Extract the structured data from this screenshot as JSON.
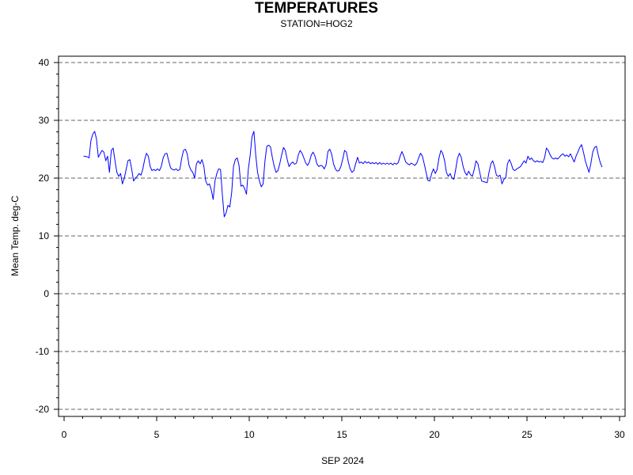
{
  "chart_data": {
    "type": "line",
    "title": "TEMPERATURES",
    "subtitle": "STATION=HOG2",
    "xlabel": "SEP 2024",
    "ylabel": "Mean Temp. deg-C",
    "xlim": [
      0,
      30.3
    ],
    "ylim": [
      -21.5,
      41
    ],
    "x_ticks": [
      0,
      5,
      10,
      15,
      20,
      25,
      30
    ],
    "y_ticks": [
      -20,
      -10,
      0,
      10,
      20,
      30,
      40
    ],
    "grid": "horizontal dashed",
    "series": [
      {
        "color": "#0000ff",
        "points": [
          [
            1.05,
            23.8
          ],
          [
            1.25,
            23.7
          ],
          [
            1.35,
            23.5
          ],
          [
            1.45,
            26.5
          ],
          [
            1.55,
            27.6
          ],
          [
            1.65,
            28.1
          ],
          [
            1.75,
            26.8
          ],
          [
            1.85,
            23.6
          ],
          [
            1.95,
            24.2
          ],
          [
            2.05,
            24.8
          ],
          [
            2.15,
            24.5
          ],
          [
            2.25,
            23.0
          ],
          [
            2.35,
            23.8
          ],
          [
            2.45,
            21.0
          ],
          [
            2.55,
            24.8
          ],
          [
            2.65,
            25.2
          ],
          [
            2.75,
            23.0
          ],
          [
            2.85,
            21.0
          ],
          [
            2.95,
            20.3
          ],
          [
            3.05,
            20.8
          ],
          [
            3.15,
            19.0
          ],
          [
            3.25,
            20.0
          ],
          [
            3.35,
            21.5
          ],
          [
            3.45,
            23.0
          ],
          [
            3.55,
            23.2
          ],
          [
            3.65,
            21.6
          ],
          [
            3.75,
            19.5
          ],
          [
            3.85,
            20.0
          ],
          [
            3.95,
            20.3
          ],
          [
            4.05,
            20.8
          ],
          [
            4.15,
            20.5
          ],
          [
            4.25,
            21.5
          ],
          [
            4.35,
            23.2
          ],
          [
            4.45,
            24.3
          ],
          [
            4.55,
            23.8
          ],
          [
            4.65,
            22.0
          ],
          [
            4.75,
            21.3
          ],
          [
            4.85,
            21.5
          ],
          [
            4.95,
            21.3
          ],
          [
            5.05,
            21.6
          ],
          [
            5.15,
            21.3
          ],
          [
            5.25,
            22.0
          ],
          [
            5.35,
            23.5
          ],
          [
            5.45,
            24.2
          ],
          [
            5.55,
            24.3
          ],
          [
            5.65,
            23.0
          ],
          [
            5.75,
            21.8
          ],
          [
            5.85,
            21.5
          ],
          [
            5.95,
            21.4
          ],
          [
            6.05,
            21.6
          ],
          [
            6.15,
            21.3
          ],
          [
            6.25,
            21.5
          ],
          [
            6.35,
            23.4
          ],
          [
            6.45,
            24.8
          ],
          [
            6.55,
            25.0
          ],
          [
            6.65,
            24.2
          ],
          [
            6.75,
            22.2
          ],
          [
            6.85,
            21.4
          ],
          [
            6.95,
            21.0
          ],
          [
            7.05,
            20.0
          ],
          [
            7.15,
            22.5
          ],
          [
            7.25,
            23.0
          ],
          [
            7.35,
            22.5
          ],
          [
            7.45,
            23.2
          ],
          [
            7.55,
            22.0
          ],
          [
            7.65,
            19.5
          ],
          [
            7.75,
            18.8
          ],
          [
            7.85,
            19.0
          ],
          [
            7.95,
            18.0
          ],
          [
            8.05,
            16.3
          ],
          [
            8.15,
            19.5
          ],
          [
            8.25,
            20.8
          ],
          [
            8.35,
            21.6
          ],
          [
            8.45,
            21.5
          ],
          [
            8.55,
            17.0
          ],
          [
            8.65,
            13.3
          ],
          [
            8.75,
            14.0
          ],
          [
            8.85,
            15.3
          ],
          [
            8.95,
            15.0
          ],
          [
            9.05,
            17.5
          ],
          [
            9.15,
            22.0
          ],
          [
            9.25,
            23.2
          ],
          [
            9.35,
            23.5
          ],
          [
            9.45,
            22.2
          ],
          [
            9.55,
            18.6
          ],
          [
            9.65,
            18.8
          ],
          [
            9.75,
            18.2
          ],
          [
            9.85,
            17.2
          ],
          [
            9.95,
            21.5
          ],
          [
            10.05,
            24.0
          ],
          [
            10.15,
            27.2
          ],
          [
            10.25,
            28.1
          ],
          [
            10.35,
            24.0
          ],
          [
            10.45,
            21.0
          ],
          [
            10.55,
            19.5
          ],
          [
            10.65,
            18.5
          ],
          [
            10.75,
            19.0
          ],
          [
            10.85,
            23.0
          ],
          [
            10.95,
            25.5
          ],
          [
            11.05,
            25.7
          ],
          [
            11.15,
            25.4
          ],
          [
            11.25,
            23.5
          ],
          [
            11.35,
            22.0
          ],
          [
            11.45,
            21.0
          ],
          [
            11.55,
            21.3
          ],
          [
            11.65,
            22.5
          ],
          [
            11.75,
            24.0
          ],
          [
            11.85,
            25.3
          ],
          [
            11.95,
            24.8
          ],
          [
            12.05,
            23.2
          ],
          [
            12.15,
            22.0
          ],
          [
            12.25,
            22.5
          ],
          [
            12.35,
            22.8
          ],
          [
            12.45,
            22.4
          ],
          [
            12.55,
            22.6
          ],
          [
            12.65,
            24.0
          ],
          [
            12.75,
            24.8
          ],
          [
            12.85,
            24.3
          ],
          [
            12.95,
            23.5
          ],
          [
            13.05,
            22.6
          ],
          [
            13.15,
            22.2
          ],
          [
            13.25,
            22.8
          ],
          [
            13.35,
            24.0
          ],
          [
            13.45,
            24.5
          ],
          [
            13.55,
            23.8
          ],
          [
            13.65,
            22.5
          ],
          [
            13.75,
            22.0
          ],
          [
            13.85,
            22.2
          ],
          [
            13.95,
            22.1
          ],
          [
            14.05,
            21.6
          ],
          [
            14.15,
            22.3
          ],
          [
            14.25,
            24.6
          ],
          [
            14.35,
            25.0
          ],
          [
            14.45,
            24.2
          ],
          [
            14.55,
            22.5
          ],
          [
            14.65,
            21.6
          ],
          [
            14.75,
            21.2
          ],
          [
            14.85,
            21.3
          ],
          [
            14.95,
            22.0
          ],
          [
            15.05,
            23.3
          ],
          [
            15.15,
            24.8
          ],
          [
            15.25,
            24.5
          ],
          [
            15.35,
            22.8
          ],
          [
            15.45,
            21.6
          ],
          [
            15.55,
            21.0
          ],
          [
            15.65,
            21.3
          ],
          [
            15.75,
            22.5
          ],
          [
            15.85,
            23.6
          ],
          [
            15.95,
            22.6
          ],
          [
            16.05,
            22.8
          ],
          [
            16.15,
            22.5
          ],
          [
            16.25,
            22.9
          ],
          [
            16.35,
            22.6
          ],
          [
            16.45,
            22.8
          ],
          [
            16.55,
            22.5
          ],
          [
            16.65,
            22.7
          ],
          [
            16.75,
            22.5
          ],
          [
            16.85,
            22.7
          ],
          [
            16.95,
            22.4
          ],
          [
            17.05,
            22.7
          ],
          [
            17.15,
            22.4
          ],
          [
            17.25,
            22.6
          ],
          [
            17.35,
            22.4
          ],
          [
            17.45,
            22.6
          ],
          [
            17.55,
            22.4
          ],
          [
            17.65,
            22.6
          ],
          [
            17.75,
            22.3
          ],
          [
            17.85,
            22.6
          ],
          [
            17.95,
            22.4
          ],
          [
            18.05,
            22.7
          ],
          [
            18.15,
            23.8
          ],
          [
            18.25,
            24.6
          ],
          [
            18.35,
            23.8
          ],
          [
            18.45,
            22.8
          ],
          [
            18.55,
            22.5
          ],
          [
            18.65,
            22.3
          ],
          [
            18.75,
            22.6
          ],
          [
            18.85,
            22.4
          ],
          [
            18.95,
            22.2
          ],
          [
            19.05,
            22.6
          ],
          [
            19.15,
            23.5
          ],
          [
            19.25,
            24.3
          ],
          [
            19.35,
            23.8
          ],
          [
            19.45,
            22.5
          ],
          [
            19.55,
            21.0
          ],
          [
            19.65,
            19.6
          ],
          [
            19.75,
            19.5
          ],
          [
            19.85,
            20.8
          ],
          [
            19.95,
            21.6
          ],
          [
            20.05,
            20.8
          ],
          [
            20.15,
            21.5
          ],
          [
            20.25,
            23.5
          ],
          [
            20.35,
            24.8
          ],
          [
            20.45,
            24.3
          ],
          [
            20.55,
            23.0
          ],
          [
            20.65,
            21.0
          ],
          [
            20.75,
            20.3
          ],
          [
            20.85,
            20.8
          ],
          [
            20.95,
            20.0
          ],
          [
            21.05,
            19.8
          ],
          [
            21.15,
            21.5
          ],
          [
            21.25,
            23.5
          ],
          [
            21.35,
            24.3
          ],
          [
            21.45,
            23.6
          ],
          [
            21.55,
            22.0
          ],
          [
            21.65,
            21.0
          ],
          [
            21.75,
            20.5
          ],
          [
            21.85,
            21.2
          ],
          [
            21.95,
            20.6
          ],
          [
            22.05,
            20.3
          ],
          [
            22.15,
            21.5
          ],
          [
            22.25,
            23.0
          ],
          [
            22.35,
            22.5
          ],
          [
            22.45,
            21.0
          ],
          [
            22.55,
            19.5
          ],
          [
            22.65,
            19.4
          ],
          [
            22.75,
            19.3
          ],
          [
            22.85,
            19.2
          ],
          [
            22.95,
            21.0
          ],
          [
            23.05,
            22.5
          ],
          [
            23.15,
            23.0
          ],
          [
            23.25,
            22.0
          ],
          [
            23.35,
            20.5
          ],
          [
            23.45,
            20.3
          ],
          [
            23.55,
            20.5
          ],
          [
            23.65,
            19.0
          ],
          [
            23.75,
            19.8
          ],
          [
            23.85,
            20.0
          ],
          [
            23.95,
            22.5
          ],
          [
            24.05,
            23.2
          ],
          [
            24.15,
            22.5
          ],
          [
            24.25,
            21.5
          ],
          [
            24.35,
            21.3
          ],
          [
            24.45,
            21.6
          ],
          [
            24.55,
            21.8
          ],
          [
            24.65,
            22.0
          ],
          [
            24.75,
            22.5
          ],
          [
            24.85,
            23.0
          ],
          [
            24.95,
            22.6
          ],
          [
            25.05,
            23.8
          ],
          [
            25.15,
            23.2
          ],
          [
            25.25,
            23.5
          ],
          [
            25.35,
            23.0
          ],
          [
            25.45,
            22.8
          ],
          [
            25.55,
            23.0
          ],
          [
            25.65,
            22.8
          ],
          [
            25.75,
            22.9
          ],
          [
            25.85,
            22.7
          ],
          [
            25.95,
            23.5
          ],
          [
            26.05,
            25.2
          ],
          [
            26.15,
            24.8
          ],
          [
            26.25,
            24.0
          ],
          [
            26.35,
            23.5
          ],
          [
            26.45,
            23.3
          ],
          [
            26.55,
            23.5
          ],
          [
            26.65,
            23.3
          ],
          [
            26.75,
            23.6
          ],
          [
            26.85,
            24.0
          ],
          [
            26.95,
            24.2
          ],
          [
            27.05,
            23.8
          ],
          [
            27.15,
            24.0
          ],
          [
            27.25,
            23.7
          ],
          [
            27.35,
            24.2
          ],
          [
            27.45,
            23.5
          ],
          [
            27.55,
            22.8
          ],
          [
            27.65,
            23.8
          ],
          [
            27.75,
            24.5
          ],
          [
            27.85,
            25.3
          ],
          [
            27.95,
            25.8
          ],
          [
            28.05,
            24.5
          ],
          [
            28.15,
            23.0
          ],
          [
            28.25,
            22.0
          ],
          [
            28.35,
            21.0
          ],
          [
            28.45,
            22.5
          ],
          [
            28.55,
            24.5
          ],
          [
            28.65,
            25.3
          ],
          [
            28.75,
            25.5
          ],
          [
            28.85,
            24.0
          ],
          [
            28.95,
            22.8
          ],
          [
            29.05,
            21.9
          ]
        ]
      }
    ]
  }
}
